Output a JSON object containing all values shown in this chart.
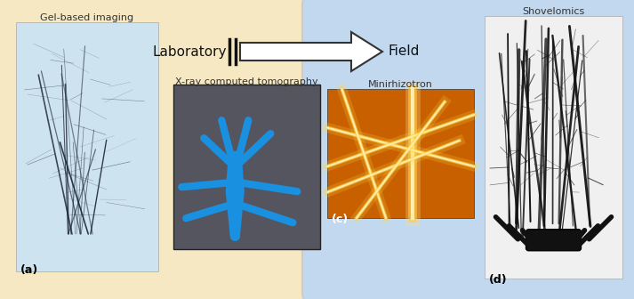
{
  "fig_width": 7.13,
  "fig_height": 3.36,
  "dpi": 100,
  "bg_color": "#e0e0e0",
  "left_box_color": "#f5e8c2",
  "right_box_color": "#c2d8ee",
  "label_a": "(a)",
  "label_c": "(c)",
  "label_d": "(d)",
  "text_lab": "Laboratory",
  "text_field": "Field",
  "text_gel": "Gel-based imaging",
  "text_xray": "X-ray computed tomography",
  "text_mini": "Minirhizotron",
  "text_shovel": "Shovelomics",
  "label_fontsize": 9,
  "caption_fontsize": 8,
  "header_fontsize": 11,
  "gel_img_color": "#cde4f0",
  "xray_img_bg": "#555560",
  "xray_blue": "#1a90e0",
  "mini_bg": "#c86000",
  "shovel_img_color": "#f0f0f0"
}
